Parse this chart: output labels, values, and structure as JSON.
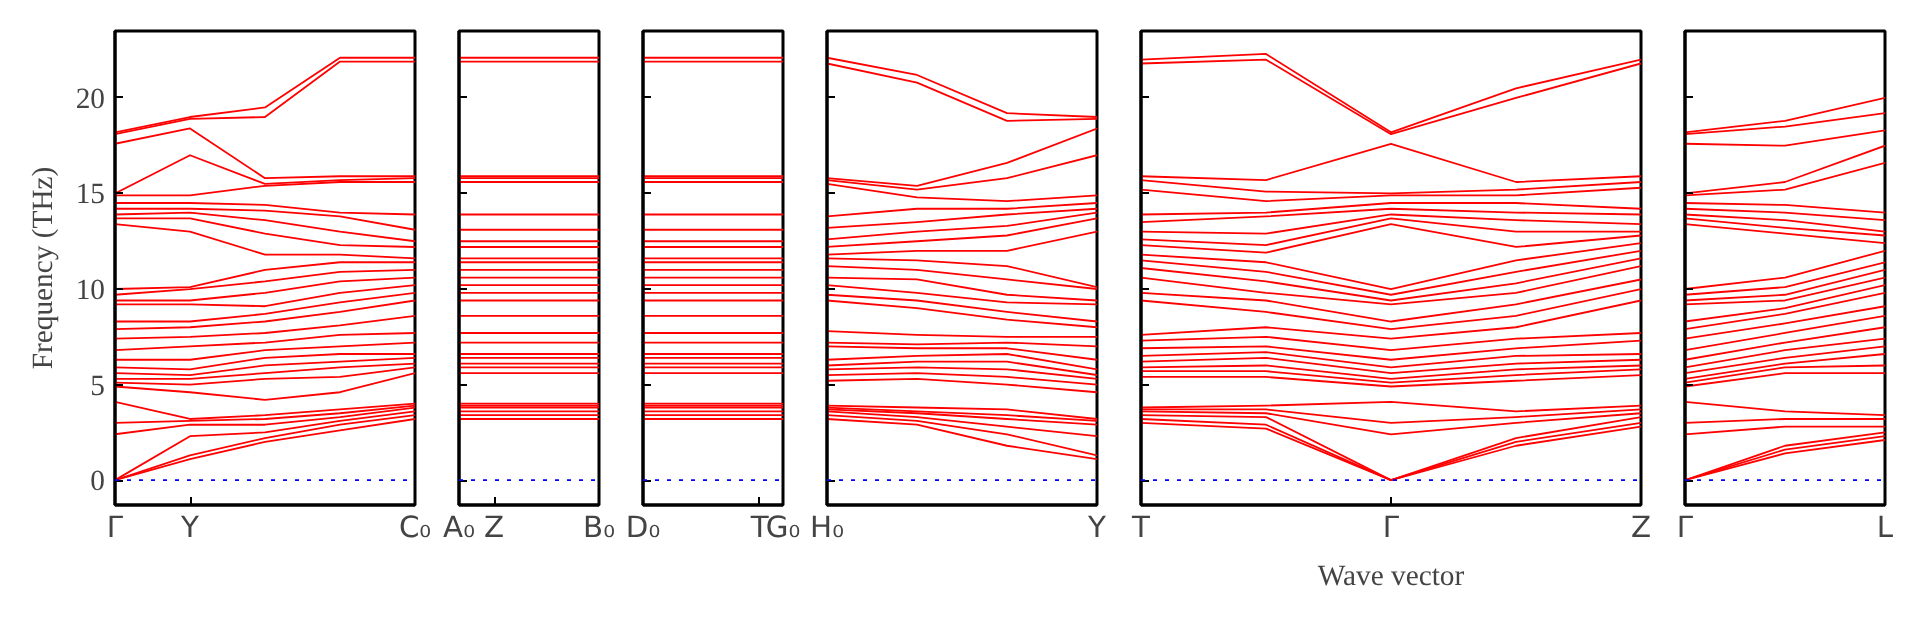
{
  "chart_data": [
    {
      "type": "line",
      "ylabel": "Frequency (THz)",
      "categories": [
        "Γ",
        "Y",
        null,
        null,
        "C₀"
      ],
      "ylim": [
        -1.3,
        23.5
      ],
      "yticks": [
        0,
        5,
        10,
        15,
        20
      ],
      "ref_lines": [
        {
          "axis": "y",
          "value": 0,
          "color": "#0000ff",
          "line_style": "dotted"
        }
      ],
      "series": [
        {
          "color": "#ff0000",
          "values": [
            0,
            1.1,
            2.0,
            2.6,
            3.2
          ]
        },
        {
          "color": "#ff0000",
          "values": [
            0,
            1.3,
            2.2,
            2.9,
            3.4
          ]
        },
        {
          "color": "#ff0000",
          "values": [
            0,
            2.3,
            2.5,
            3.1,
            3.6
          ]
        },
        {
          "color": "#ff0000",
          "values": [
            2.4,
            2.9,
            2.9,
            3.3,
            3.8
          ]
        },
        {
          "color": "#ff0000",
          "values": [
            3.0,
            3.1,
            3.2,
            3.5,
            3.9
          ]
        },
        {
          "color": "#ff0000",
          "values": [
            4.1,
            3.2,
            3.4,
            3.7,
            4.0
          ]
        },
        {
          "color": "#ff0000",
          "values": [
            4.9,
            4.6,
            4.2,
            4.6,
            5.6
          ]
        },
        {
          "color": "#ff0000",
          "values": [
            5.1,
            5.0,
            5.3,
            5.4,
            5.9
          ]
        },
        {
          "color": "#ff0000",
          "values": [
            5.3,
            5.3,
            5.6,
            5.9,
            6.1
          ]
        },
        {
          "color": "#ff0000",
          "values": [
            5.6,
            5.5,
            6.0,
            6.2,
            6.4
          ]
        },
        {
          "color": "#ff0000",
          "values": [
            5.9,
            5.8,
            6.4,
            6.6,
            6.6
          ]
        },
        {
          "color": "#ff0000",
          "values": [
            6.3,
            6.3,
            6.8,
            7.0,
            7.2
          ]
        },
        {
          "color": "#ff0000",
          "values": [
            6.8,
            7.0,
            7.2,
            7.6,
            7.7
          ]
        },
        {
          "color": "#ff0000",
          "values": [
            7.4,
            7.5,
            7.7,
            8.1,
            8.6
          ]
        },
        {
          "color": "#ff0000",
          "values": [
            7.9,
            8.0,
            8.3,
            8.8,
            9.4
          ]
        },
        {
          "color": "#ff0000",
          "values": [
            8.3,
            8.3,
            8.7,
            9.3,
            9.8
          ]
        },
        {
          "color": "#ff0000",
          "values": [
            9.2,
            9.2,
            9.1,
            9.8,
            10.2
          ]
        },
        {
          "color": "#ff0000",
          "values": [
            9.4,
            9.4,
            9.8,
            10.4,
            10.6
          ]
        },
        {
          "color": "#ff0000",
          "values": [
            9.7,
            10.0,
            10.4,
            10.9,
            11.0
          ]
        },
        {
          "color": "#ff0000",
          "values": [
            10.0,
            10.1,
            11.0,
            11.4,
            11.4
          ]
        },
        {
          "color": "#ff0000",
          "values": [
            13.4,
            13.0,
            11.8,
            11.8,
            11.6
          ]
        },
        {
          "color": "#ff0000",
          "values": [
            13.7,
            13.7,
            12.9,
            12.3,
            12.2
          ]
        },
        {
          "color": "#ff0000",
          "values": [
            13.9,
            14.0,
            13.6,
            13.0,
            12.5
          ]
        },
        {
          "color": "#ff0000",
          "values": [
            14.2,
            14.2,
            14.1,
            13.8,
            13.1
          ]
        },
        {
          "color": "#ff0000",
          "values": [
            14.5,
            14.5,
            14.4,
            14.0,
            13.9
          ]
        },
        {
          "color": "#ff0000",
          "values": [
            14.9,
            14.9,
            15.4,
            15.6,
            15.6
          ]
        },
        {
          "color": "#ff0000",
          "values": [
            15.0,
            17.0,
            15.5,
            15.7,
            15.8
          ]
        },
        {
          "color": "#ff0000",
          "values": [
            17.6,
            18.4,
            15.8,
            15.9,
            15.9
          ]
        },
        {
          "color": "#ff0000",
          "values": [
            18.1,
            18.9,
            19.0,
            21.9,
            21.9
          ]
        },
        {
          "color": "#ff0000",
          "values": [
            18.2,
            19.0,
            19.5,
            22.1,
            22.1
          ]
        }
      ]
    },
    {
      "type": "line",
      "tick_labels": "x",
      "categories": [
        "A₀",
        "Z",
        null,
        null,
        "B₀"
      ],
      "ylim": [
        -1.3,
        23.5
      ],
      "yticks": [
        0,
        5,
        10,
        15,
        20
      ],
      "ref_lines": [
        {
          "axis": "y",
          "value": 0,
          "color": "#0000ff",
          "line_style": "dotted"
        }
      ],
      "series": [
        {
          "color": "#ff0000",
          "values": [
            3.2,
            3.2,
            3.2,
            3.2,
            3.2
          ]
        },
        {
          "color": "#ff0000",
          "values": [
            3.4,
            3.4,
            3.4,
            3.4,
            3.4
          ]
        },
        {
          "color": "#ff0000",
          "values": [
            3.6,
            3.6,
            3.6,
            3.6,
            3.6
          ]
        },
        {
          "color": "#ff0000",
          "values": [
            3.8,
            3.8,
            3.8,
            3.8,
            3.8
          ]
        },
        {
          "color": "#ff0000",
          "values": [
            3.9,
            3.9,
            3.9,
            3.9,
            3.9
          ]
        },
        {
          "color": "#ff0000",
          "values": [
            4.0,
            4.0,
            4.0,
            4.0,
            4.0
          ]
        },
        {
          "color": "#ff0000",
          "values": [
            5.6,
            5.6,
            5.6,
            5.6,
            5.6
          ]
        },
        {
          "color": "#ff0000",
          "values": [
            5.9,
            5.9,
            5.9,
            5.9,
            5.9
          ]
        },
        {
          "color": "#ff0000",
          "values": [
            6.1,
            6.1,
            6.1,
            6.1,
            6.1
          ]
        },
        {
          "color": "#ff0000",
          "values": [
            6.4,
            6.4,
            6.4,
            6.4,
            6.4
          ]
        },
        {
          "color": "#ff0000",
          "values": [
            6.6,
            6.6,
            6.6,
            6.6,
            6.6
          ]
        },
        {
          "color": "#ff0000",
          "values": [
            7.2,
            7.2,
            7.2,
            7.2,
            7.2
          ]
        },
        {
          "color": "#ff0000",
          "values": [
            7.7,
            7.7,
            7.7,
            7.7,
            7.7
          ]
        },
        {
          "color": "#ff0000",
          "values": [
            8.6,
            8.6,
            8.6,
            8.6,
            8.6
          ]
        },
        {
          "color": "#ff0000",
          "values": [
            9.4,
            9.4,
            9.4,
            9.4,
            9.4
          ]
        },
        {
          "color": "#ff0000",
          "values": [
            9.8,
            9.8,
            9.8,
            9.8,
            9.8
          ]
        },
        {
          "color": "#ff0000",
          "values": [
            10.2,
            10.2,
            10.2,
            10.2,
            10.2
          ]
        },
        {
          "color": "#ff0000",
          "values": [
            10.6,
            10.6,
            10.6,
            10.6,
            10.6
          ]
        },
        {
          "color": "#ff0000",
          "values": [
            11.0,
            11.0,
            11.0,
            11.0,
            11.0
          ]
        },
        {
          "color": "#ff0000",
          "values": [
            11.4,
            11.4,
            11.4,
            11.4,
            11.4
          ]
        },
        {
          "color": "#ff0000",
          "values": [
            11.6,
            11.6,
            11.6,
            11.6,
            11.6
          ]
        },
        {
          "color": "#ff0000",
          "values": [
            12.2,
            12.2,
            12.2,
            12.2,
            12.2
          ]
        },
        {
          "color": "#ff0000",
          "values": [
            12.5,
            12.5,
            12.5,
            12.5,
            12.5
          ]
        },
        {
          "color": "#ff0000",
          "values": [
            13.1,
            13.1,
            13.1,
            13.1,
            13.1
          ]
        },
        {
          "color": "#ff0000",
          "values": [
            13.9,
            13.9,
            13.9,
            13.9,
            13.9
          ]
        },
        {
          "color": "#ff0000",
          "values": [
            15.6,
            15.6,
            15.6,
            15.6,
            15.6
          ]
        },
        {
          "color": "#ff0000",
          "values": [
            15.8,
            15.8,
            15.8,
            15.8,
            15.8
          ]
        },
        {
          "color": "#ff0000",
          "values": [
            15.9,
            15.9,
            15.9,
            15.9,
            15.9
          ]
        },
        {
          "color": "#ff0000",
          "values": [
            21.9,
            21.9,
            21.9,
            21.9,
            21.9
          ]
        },
        {
          "color": "#ff0000",
          "values": [
            22.1,
            22.1,
            22.1,
            22.1,
            22.1
          ]
        }
      ]
    },
    {
      "type": "line",
      "tick_labels": "x",
      "categories": [
        "D₀",
        null,
        null,
        null,
        null,
        "T",
        "G₀"
      ],
      "ylim": [
        -1.3,
        23.5
      ],
      "yticks": [
        0,
        5,
        10,
        15,
        20
      ],
      "ref_lines": [
        {
          "axis": "y",
          "value": 0,
          "color": "#0000ff",
          "line_style": "dotted"
        }
      ],
      "series": [
        {
          "color": "#ff0000",
          "values": [
            3.2,
            3.2,
            3.2,
            3.2,
            3.2,
            3.2,
            3.2
          ]
        },
        {
          "color": "#ff0000",
          "values": [
            3.4,
            3.4,
            3.4,
            3.4,
            3.4,
            3.4,
            3.4
          ]
        },
        {
          "color": "#ff0000",
          "values": [
            3.6,
            3.6,
            3.6,
            3.6,
            3.6,
            3.6,
            3.6
          ]
        },
        {
          "color": "#ff0000",
          "values": [
            3.8,
            3.8,
            3.8,
            3.8,
            3.8,
            3.8,
            3.8
          ]
        },
        {
          "color": "#ff0000",
          "values": [
            3.9,
            3.9,
            3.9,
            3.9,
            3.9,
            3.9,
            3.9
          ]
        },
        {
          "color": "#ff0000",
          "values": [
            4.0,
            4.0,
            4.0,
            4.0,
            4.0,
            4.0,
            4.0
          ]
        },
        {
          "color": "#ff0000",
          "values": [
            5.6,
            5.6,
            5.6,
            5.6,
            5.6,
            5.6,
            5.6
          ]
        },
        {
          "color": "#ff0000",
          "values": [
            5.9,
            5.9,
            5.9,
            5.9,
            5.9,
            5.9,
            5.9
          ]
        },
        {
          "color": "#ff0000",
          "values": [
            6.1,
            6.1,
            6.1,
            6.1,
            6.1,
            6.1,
            6.1
          ]
        },
        {
          "color": "#ff0000",
          "values": [
            6.4,
            6.4,
            6.4,
            6.4,
            6.4,
            6.4,
            6.4
          ]
        },
        {
          "color": "#ff0000",
          "values": [
            6.6,
            6.6,
            6.6,
            6.6,
            6.6,
            6.6,
            6.6
          ]
        },
        {
          "color": "#ff0000",
          "values": [
            7.2,
            7.2,
            7.2,
            7.2,
            7.2,
            7.2,
            7.2
          ]
        },
        {
          "color": "#ff0000",
          "values": [
            7.7,
            7.7,
            7.7,
            7.7,
            7.7,
            7.7,
            7.7
          ]
        },
        {
          "color": "#ff0000",
          "values": [
            8.6,
            8.6,
            8.6,
            8.6,
            8.6,
            8.6,
            8.6
          ]
        },
        {
          "color": "#ff0000",
          "values": [
            9.4,
            9.4,
            9.4,
            9.4,
            9.4,
            9.4,
            9.4
          ]
        },
        {
          "color": "#ff0000",
          "values": [
            9.8,
            9.8,
            9.8,
            9.8,
            9.8,
            9.8,
            9.8
          ]
        },
        {
          "color": "#ff0000",
          "values": [
            10.2,
            10.2,
            10.2,
            10.2,
            10.2,
            10.2,
            10.2
          ]
        },
        {
          "color": "#ff0000",
          "values": [
            10.6,
            10.6,
            10.6,
            10.6,
            10.6,
            10.6,
            10.6
          ]
        },
        {
          "color": "#ff0000",
          "values": [
            11.0,
            11.0,
            11.0,
            11.0,
            11.0,
            11.0,
            11.0
          ]
        },
        {
          "color": "#ff0000",
          "values": [
            11.4,
            11.4,
            11.4,
            11.4,
            11.4,
            11.4,
            11.4
          ]
        },
        {
          "color": "#ff0000",
          "values": [
            11.6,
            11.6,
            11.6,
            11.6,
            11.6,
            11.6,
            11.6
          ]
        },
        {
          "color": "#ff0000",
          "values": [
            12.2,
            12.2,
            12.2,
            12.2,
            12.2,
            12.2,
            12.2
          ]
        },
        {
          "color": "#ff0000",
          "values": [
            12.5,
            12.5,
            12.5,
            12.5,
            12.5,
            12.5,
            12.5
          ]
        },
        {
          "color": "#ff0000",
          "values": [
            13.1,
            13.1,
            13.1,
            13.1,
            13.1,
            13.1,
            13.1
          ]
        },
        {
          "color": "#ff0000",
          "values": [
            13.9,
            13.9,
            13.9,
            13.9,
            13.9,
            13.9,
            13.9
          ]
        },
        {
          "color": "#ff0000",
          "values": [
            15.6,
            15.6,
            15.6,
            15.6,
            15.6,
            15.6,
            15.6
          ]
        },
        {
          "color": "#ff0000",
          "values": [
            15.8,
            15.8,
            15.8,
            15.8,
            15.8,
            15.8,
            15.8
          ]
        },
        {
          "color": "#ff0000",
          "values": [
            15.9,
            15.9,
            15.9,
            15.9,
            15.9,
            15.9,
            15.9
          ]
        },
        {
          "color": "#ff0000",
          "values": [
            21.9,
            21.9,
            21.9,
            21.9,
            21.9,
            21.9,
            21.9
          ]
        },
        {
          "color": "#ff0000",
          "values": [
            22.1,
            22.1,
            22.1,
            22.1,
            22.1,
            22.1,
            22.1
          ]
        }
      ]
    },
    {
      "type": "line",
      "tick_labels": "x",
      "categories": [
        "H₀",
        null,
        null,
        "Y"
      ],
      "ylim": [
        -1.3,
        23.5
      ],
      "yticks": [
        0,
        5,
        10,
        15,
        20
      ],
      "ref_lines": [
        {
          "axis": "y",
          "value": 0,
          "color": "#0000ff",
          "line_style": "dotted"
        }
      ],
      "series": [
        {
          "color": "#ff0000",
          "values": [
            3.2,
            2.9,
            1.8,
            1.1
          ]
        },
        {
          "color": "#ff0000",
          "values": [
            3.4,
            3.1,
            2.4,
            1.3
          ]
        },
        {
          "color": "#ff0000",
          "values": [
            3.6,
            3.3,
            2.8,
            2.3
          ]
        },
        {
          "color": "#ff0000",
          "values": [
            3.7,
            3.5,
            3.2,
            2.9
          ]
        },
        {
          "color": "#ff0000",
          "values": [
            3.8,
            3.6,
            3.4,
            3.1
          ]
        },
        {
          "color": "#ff0000",
          "values": [
            3.9,
            3.8,
            3.7,
            3.2
          ]
        },
        {
          "color": "#ff0000",
          "values": [
            5.2,
            5.3,
            5.0,
            4.6
          ]
        },
        {
          "color": "#ff0000",
          "values": [
            5.5,
            5.6,
            5.4,
            5.0
          ]
        },
        {
          "color": "#ff0000",
          "values": [
            5.8,
            5.9,
            5.8,
            5.3
          ]
        },
        {
          "color": "#ff0000",
          "values": [
            6.0,
            6.2,
            6.2,
            5.5
          ]
        },
        {
          "color": "#ff0000",
          "values": [
            6.3,
            6.5,
            6.6,
            5.8
          ]
        },
        {
          "color": "#ff0000",
          "values": [
            7.0,
            6.9,
            6.9,
            6.3
          ]
        },
        {
          "color": "#ff0000",
          "values": [
            7.2,
            7.1,
            7.2,
            7.0
          ]
        },
        {
          "color": "#ff0000",
          "values": [
            7.8,
            7.6,
            7.5,
            7.5
          ]
        },
        {
          "color": "#ff0000",
          "values": [
            9.4,
            9.0,
            8.4,
            8.0
          ]
        },
        {
          "color": "#ff0000",
          "values": [
            9.7,
            9.4,
            8.8,
            8.3
          ]
        },
        {
          "color": "#ff0000",
          "values": [
            10.2,
            9.8,
            9.3,
            9.2
          ]
        },
        {
          "color": "#ff0000",
          "values": [
            10.6,
            10.5,
            9.7,
            9.4
          ]
        },
        {
          "color": "#ff0000",
          "values": [
            11.2,
            11.0,
            10.5,
            10.0
          ]
        },
        {
          "color": "#ff0000",
          "values": [
            11.6,
            11.5,
            11.2,
            10.1
          ]
        },
        {
          "color": "#ff0000",
          "values": [
            11.8,
            12.0,
            12.0,
            13.0
          ]
        },
        {
          "color": "#ff0000",
          "values": [
            12.2,
            12.5,
            12.8,
            13.7
          ]
        },
        {
          "color": "#ff0000",
          "values": [
            12.6,
            13.0,
            13.3,
            14.0
          ]
        },
        {
          "color": "#ff0000",
          "values": [
            13.2,
            13.5,
            13.9,
            14.2
          ]
        },
        {
          "color": "#ff0000",
          "values": [
            13.8,
            14.2,
            14.2,
            14.5
          ]
        },
        {
          "color": "#ff0000",
          "values": [
            15.5,
            14.8,
            14.6,
            14.9
          ]
        },
        {
          "color": "#ff0000",
          "values": [
            15.7,
            15.2,
            15.8,
            17.0
          ]
        },
        {
          "color": "#ff0000",
          "values": [
            15.8,
            15.4,
            16.6,
            18.4
          ]
        },
        {
          "color": "#ff0000",
          "values": [
            21.8,
            20.8,
            18.8,
            18.9
          ]
        },
        {
          "color": "#ff0000",
          "values": [
            22.1,
            21.2,
            19.2,
            19.0
          ]
        }
      ]
    },
    {
      "type": "line",
      "tick_labels": "x",
      "xlabel": "Wave vector",
      "categories": [
        "T",
        null,
        "Γ",
        null,
        "Z"
      ],
      "ylim": [
        -1.3,
        23.5
      ],
      "yticks": [
        0,
        5,
        10,
        15,
        20
      ],
      "ref_lines": [
        {
          "axis": "y",
          "value": 0,
          "color": "#0000ff",
          "line_style": "dotted"
        }
      ],
      "series": [
        {
          "color": "#ff0000",
          "values": [
            3.0,
            2.7,
            0,
            1.8,
            2.8
          ]
        },
        {
          "color": "#ff0000",
          "values": [
            3.2,
            2.9,
            0,
            2.0,
            3.0
          ]
        },
        {
          "color": "#ff0000",
          "values": [
            3.4,
            3.3,
            0,
            2.2,
            3.3
          ]
        },
        {
          "color": "#ff0000",
          "values": [
            3.6,
            3.5,
            2.4,
            3.0,
            3.5
          ]
        },
        {
          "color": "#ff0000",
          "values": [
            3.7,
            3.7,
            3.0,
            3.3,
            3.7
          ]
        },
        {
          "color": "#ff0000",
          "values": [
            3.8,
            3.9,
            4.1,
            3.6,
            3.9
          ]
        },
        {
          "color": "#ff0000",
          "values": [
            5.4,
            5.4,
            4.9,
            5.2,
            5.5
          ]
        },
        {
          "color": "#ff0000",
          "values": [
            5.7,
            5.7,
            5.1,
            5.5,
            5.8
          ]
        },
        {
          "color": "#ff0000",
          "values": [
            5.9,
            6.0,
            5.3,
            5.8,
            6.0
          ]
        },
        {
          "color": "#ff0000",
          "values": [
            6.2,
            6.4,
            5.6,
            6.1,
            6.3
          ]
        },
        {
          "color": "#ff0000",
          "values": [
            6.5,
            6.7,
            5.9,
            6.5,
            6.6
          ]
        },
        {
          "color": "#ff0000",
          "values": [
            6.9,
            7.0,
            6.3,
            6.9,
            7.3
          ]
        },
        {
          "color": "#ff0000",
          "values": [
            7.3,
            7.5,
            6.8,
            7.4,
            7.7
          ]
        },
        {
          "color": "#ff0000",
          "values": [
            7.6,
            8.0,
            7.4,
            8.0,
            9.4
          ]
        },
        {
          "color": "#ff0000",
          "values": [
            9.4,
            8.8,
            7.9,
            8.6,
            10.0
          ]
        },
        {
          "color": "#ff0000",
          "values": [
            9.8,
            9.4,
            8.3,
            9.2,
            10.5
          ]
        },
        {
          "color": "#ff0000",
          "values": [
            10.6,
            9.8,
            9.2,
            9.8,
            11.2
          ]
        },
        {
          "color": "#ff0000",
          "values": [
            11.1,
            10.4,
            9.4,
            10.3,
            11.6
          ]
        },
        {
          "color": "#ff0000",
          "values": [
            11.5,
            10.9,
            9.7,
            10.9,
            12.0
          ]
        },
        {
          "color": "#ff0000",
          "values": [
            11.8,
            11.4,
            10.0,
            11.5,
            12.4
          ]
        },
        {
          "color": "#ff0000",
          "values": [
            12.3,
            11.9,
            13.4,
            12.2,
            12.8
          ]
        },
        {
          "color": "#ff0000",
          "values": [
            12.6,
            12.3,
            13.7,
            13.0,
            13.0
          ]
        },
        {
          "color": "#ff0000",
          "values": [
            13.0,
            12.9,
            13.9,
            13.6,
            13.4
          ]
        },
        {
          "color": "#ff0000",
          "values": [
            13.5,
            13.8,
            14.2,
            14.0,
            13.9
          ]
        },
        {
          "color": "#ff0000",
          "values": [
            13.9,
            14.0,
            14.5,
            14.5,
            14.2
          ]
        },
        {
          "color": "#ff0000",
          "values": [
            15.2,
            14.6,
            14.9,
            14.9,
            15.3
          ]
        },
        {
          "color": "#ff0000",
          "values": [
            15.7,
            15.1,
            15.0,
            15.2,
            15.6
          ]
        },
        {
          "color": "#ff0000",
          "values": [
            15.9,
            15.7,
            17.6,
            15.6,
            15.9
          ]
        },
        {
          "color": "#ff0000",
          "values": [
            21.8,
            22.0,
            18.1,
            20.0,
            21.8
          ]
        },
        {
          "color": "#ff0000",
          "values": [
            22.0,
            22.3,
            18.2,
            20.5,
            22.0
          ]
        }
      ]
    },
    {
      "type": "line",
      "tick_labels": "x",
      "categories": [
        "Γ",
        null,
        "L"
      ],
      "ylim": [
        -1.3,
        23.5
      ],
      "yticks": [
        0,
        5,
        10,
        15,
        20
      ],
      "ref_lines": [
        {
          "axis": "y",
          "value": 0,
          "color": "#0000ff",
          "line_style": "dotted"
        }
      ],
      "series": [
        {
          "color": "#ff0000",
          "values": [
            0,
            1.4,
            2.1
          ]
        },
        {
          "color": "#ff0000",
          "values": [
            0,
            1.6,
            2.3
          ]
        },
        {
          "color": "#ff0000",
          "values": [
            0,
            1.8,
            2.5
          ]
        },
        {
          "color": "#ff0000",
          "values": [
            2.4,
            2.8,
            2.8
          ]
        },
        {
          "color": "#ff0000",
          "values": [
            3.0,
            3.2,
            3.2
          ]
        },
        {
          "color": "#ff0000",
          "values": [
            4.1,
            3.6,
            3.4
          ]
        },
        {
          "color": "#ff0000",
          "values": [
            4.9,
            5.6,
            5.6
          ]
        },
        {
          "color": "#ff0000",
          "values": [
            5.1,
            5.9,
            6.0
          ]
        },
        {
          "color": "#ff0000",
          "values": [
            5.3,
            6.1,
            6.6
          ]
        },
        {
          "color": "#ff0000",
          "values": [
            5.6,
            6.4,
            7.0
          ]
        },
        {
          "color": "#ff0000",
          "values": [
            5.9,
            6.8,
            7.4
          ]
        },
        {
          "color": "#ff0000",
          "values": [
            6.3,
            7.2,
            8.0
          ]
        },
        {
          "color": "#ff0000",
          "values": [
            6.8,
            7.7,
            8.6
          ]
        },
        {
          "color": "#ff0000",
          "values": [
            7.4,
            8.2,
            9.1
          ]
        },
        {
          "color": "#ff0000",
          "values": [
            7.9,
            8.7,
            9.8
          ]
        },
        {
          "color": "#ff0000",
          "values": [
            8.3,
            9.0,
            10.2
          ]
        },
        {
          "color": "#ff0000",
          "values": [
            9.2,
            9.4,
            10.6
          ]
        },
        {
          "color": "#ff0000",
          "values": [
            9.4,
            9.7,
            11.0
          ]
        },
        {
          "color": "#ff0000",
          "values": [
            9.7,
            10.1,
            11.4
          ]
        },
        {
          "color": "#ff0000",
          "values": [
            10.0,
            10.6,
            12.0
          ]
        },
        {
          "color": "#ff0000",
          "values": [
            13.4,
            12.9,
            12.4
          ]
        },
        {
          "color": "#ff0000",
          "values": [
            13.7,
            13.2,
            12.8
          ]
        },
        {
          "color": "#ff0000",
          "values": [
            13.9,
            13.6,
            13.0
          ]
        },
        {
          "color": "#ff0000",
          "values": [
            14.2,
            14.0,
            13.6
          ]
        },
        {
          "color": "#ff0000",
          "values": [
            14.5,
            14.4,
            14.0
          ]
        },
        {
          "color": "#ff0000",
          "values": [
            14.9,
            15.2,
            16.6
          ]
        },
        {
          "color": "#ff0000",
          "values": [
            15.0,
            15.6,
            17.5
          ]
        },
        {
          "color": "#ff0000",
          "values": [
            17.6,
            17.5,
            18.3
          ]
        },
        {
          "color": "#ff0000",
          "values": [
            18.1,
            18.5,
            19.2
          ]
        },
        {
          "color": "#ff0000",
          "values": [
            18.2,
            18.8,
            20.0
          ]
        }
      ]
    }
  ]
}
